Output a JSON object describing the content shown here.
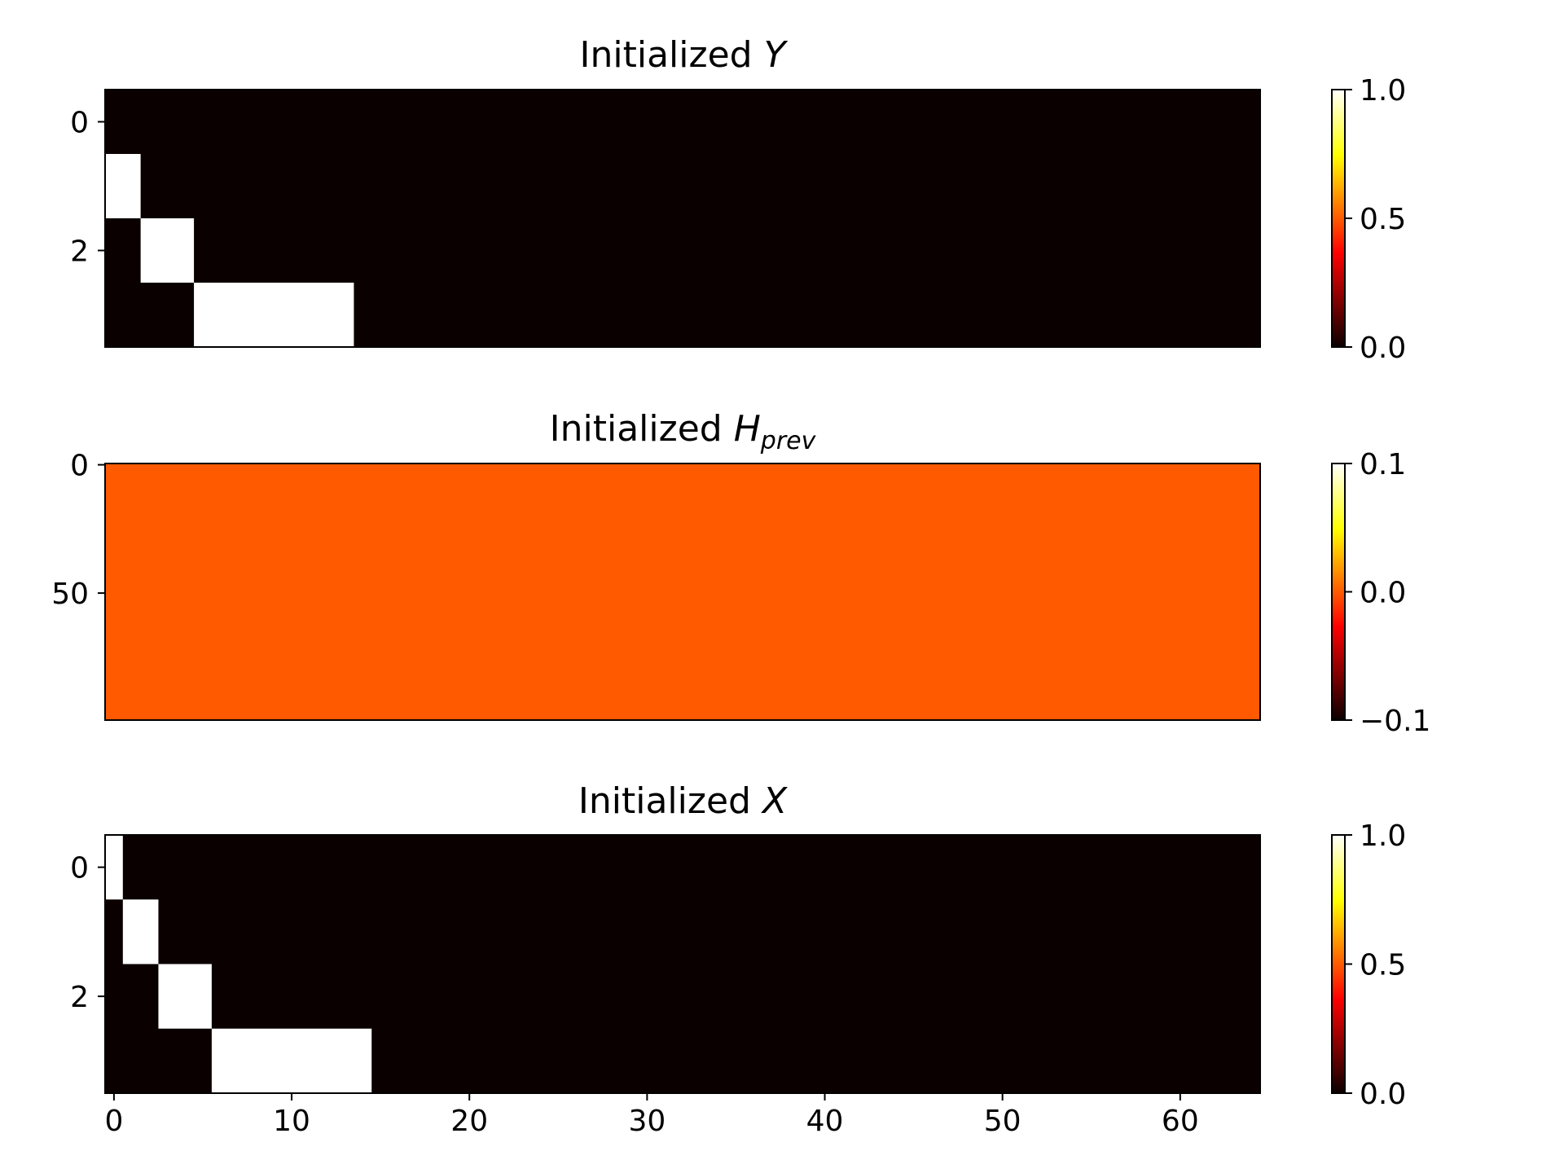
{
  "chart_data": [
    {
      "type": "heatmap",
      "title": "Initialized ",
      "title_symbol": "Y",
      "title_subscript": "",
      "colormap": "hot",
      "cols": 65,
      "row_range": [
        -0.5,
        3.5
      ],
      "col_range": [
        -0.5,
        64.5
      ],
      "background_value": 0.0,
      "cells": [
        {
          "row": 1,
          "col_start": 0,
          "col_end": 1,
          "value": 1.0
        },
        {
          "row": 2,
          "col_start": 2,
          "col_end": 4,
          "value": 1.0
        },
        {
          "row": 3,
          "col_start": 5,
          "col_end": 13,
          "value": 1.0
        }
      ],
      "y_ticks": [
        {
          "value": 0,
          "label": "0"
        },
        {
          "value": 2,
          "label": "2"
        }
      ],
      "x_ticks": [],
      "colorbar": {
        "min": 0.0,
        "max": 1.0,
        "ticks": [
          {
            "value": 0.0,
            "label": "0.0"
          },
          {
            "value": 0.5,
            "label": "0.5"
          },
          {
            "value": 1.0,
            "label": "1.0"
          }
        ]
      }
    },
    {
      "type": "heatmap",
      "title": "Initialized ",
      "title_symbol": "H",
      "title_subscript": "prev",
      "colormap": "hot",
      "cols": 65,
      "row_range": [
        -0.5,
        99.5
      ],
      "col_range": [
        -0.5,
        64.5
      ],
      "background_value": 0.0,
      "cells": [],
      "y_ticks": [
        {
          "value": 0,
          "label": "0"
        },
        {
          "value": 50,
          "label": "50"
        }
      ],
      "x_ticks": [],
      "colorbar": {
        "min": -0.1,
        "max": 0.1,
        "ticks": [
          {
            "value": -0.1,
            "label": "−0.1"
          },
          {
            "value": 0.0,
            "label": "0.0"
          },
          {
            "value": 0.1,
            "label": "0.1"
          }
        ]
      }
    },
    {
      "type": "heatmap",
      "title": "Initialized ",
      "title_symbol": "X",
      "title_subscript": "",
      "colormap": "hot",
      "cols": 65,
      "row_range": [
        -0.5,
        3.5
      ],
      "col_range": [
        -0.5,
        64.5
      ],
      "background_value": 0.0,
      "cells": [
        {
          "row": 0,
          "col_start": 0,
          "col_end": 0,
          "value": 1.0
        },
        {
          "row": 1,
          "col_start": 1,
          "col_end": 2,
          "value": 1.0
        },
        {
          "row": 2,
          "col_start": 3,
          "col_end": 5,
          "value": 1.0
        },
        {
          "row": 3,
          "col_start": 6,
          "col_end": 14,
          "value": 1.0
        }
      ],
      "y_ticks": [
        {
          "value": 0,
          "label": "0"
        },
        {
          "value": 2,
          "label": "2"
        }
      ],
      "x_ticks": [
        {
          "value": 0,
          "label": "0"
        },
        {
          "value": 10,
          "label": "10"
        },
        {
          "value": 20,
          "label": "20"
        },
        {
          "value": 30,
          "label": "30"
        },
        {
          "value": 40,
          "label": "40"
        },
        {
          "value": 50,
          "label": "50"
        },
        {
          "value": 60,
          "label": "60"
        }
      ],
      "colorbar": {
        "min": 0.0,
        "max": 1.0,
        "ticks": [
          {
            "value": 0.0,
            "label": "0.0"
          },
          {
            "value": 0.5,
            "label": "0.5"
          },
          {
            "value": 1.0,
            "label": "1.0"
          }
        ]
      }
    }
  ]
}
